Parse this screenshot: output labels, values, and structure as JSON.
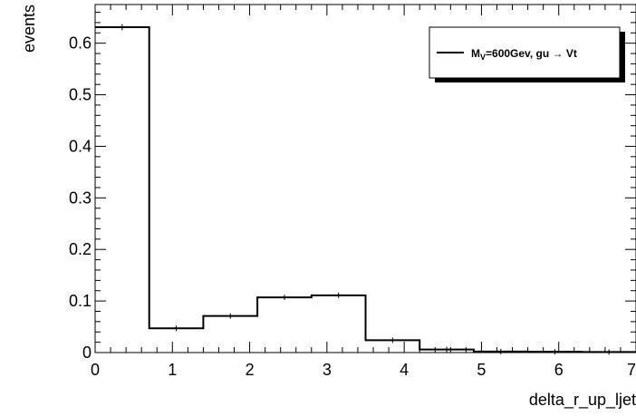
{
  "chart_data": {
    "type": "histogram",
    "xlabel": "delta_r_up_ljet",
    "ylabel": "events",
    "xlim": [
      0,
      7
    ],
    "ylim": [
      0,
      0.675
    ],
    "x_ticks": [
      "0",
      "1",
      "2",
      "3",
      "4",
      "5",
      "6",
      "7"
    ],
    "y_ticks": [
      "0",
      "0.1",
      "0.2",
      "0.3",
      "0.4",
      "0.5",
      "0.6"
    ],
    "legend_position": "top-right",
    "series": [
      {
        "name": "M_V=600Gev, gu → Vt",
        "color": "#000000",
        "bin_edges": [
          0,
          0.7,
          1.4,
          2.1,
          2.8,
          3.5,
          4.2,
          4.9,
          5.6,
          6.3,
          7.0
        ],
        "values": [
          0.631,
          0.047,
          0.071,
          0.107,
          0.111,
          0.024,
          0.006,
          0.002,
          0.0015,
          0.001
        ],
        "errors": [
          0.006,
          0.0015,
          0.0018,
          0.0022,
          0.0023,
          0.001,
          0.0005,
          0.0003,
          0.0003,
          0.0002
        ]
      }
    ]
  },
  "legend": {
    "label_main": "M",
    "label_sub": "V",
    "label_rest": "=600Gev, gu → Vt"
  }
}
